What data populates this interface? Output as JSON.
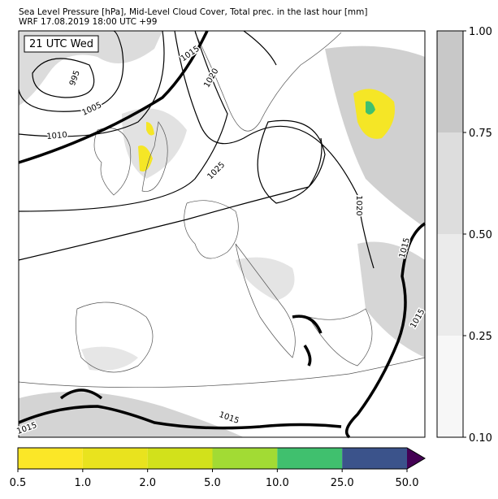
{
  "header": {
    "title": "Sea Level Pressure [hPa], Mid-Level Cloud Cover, Total prec. in the last hour [mm]",
    "subtitle": "WRF 17.08.2019 18:00 UTC +99"
  },
  "map": {
    "time_label": "21 UTC Wed",
    "contour_labels": [
      "995",
      "1005",
      "1010",
      "1015",
      "1020",
      "1025",
      "1020",
      "1015",
      "1015",
      "1015",
      "1015"
    ]
  },
  "cloud_colorbar": {
    "ticks": [
      {
        "value": 0.1,
        "label": "0.10"
      },
      {
        "value": 0.25,
        "label": "0.25"
      },
      {
        "value": 0.5,
        "label": "0.50"
      },
      {
        "value": 0.75,
        "label": "0.75"
      },
      {
        "value": 1,
        "label": "1.00"
      }
    ],
    "colors": [
      "#f7f7f7",
      "#ebebeb",
      "#dddddd",
      "#c8c8c8"
    ]
  },
  "precip_colorbar": {
    "ticks": [
      0.5,
      {
        "value": 1,
        "label": "1.0"
      },
      {
        "value": 2,
        "label": "2.0"
      },
      {
        "value": 5,
        "label": "5.0"
      },
      {
        "value": 10,
        "label": "10.0"
      },
      {
        "value": 25,
        "label": "25.0"
      },
      {
        "value": 50,
        "label": "50.0"
      }
    ],
    "colors": [
      "#fbe727",
      "#e9e31e",
      "#d2e11b",
      "#a2db34",
      "#40c06e",
      "#3b538b"
    ],
    "extend_color": "#440154"
  }
}
